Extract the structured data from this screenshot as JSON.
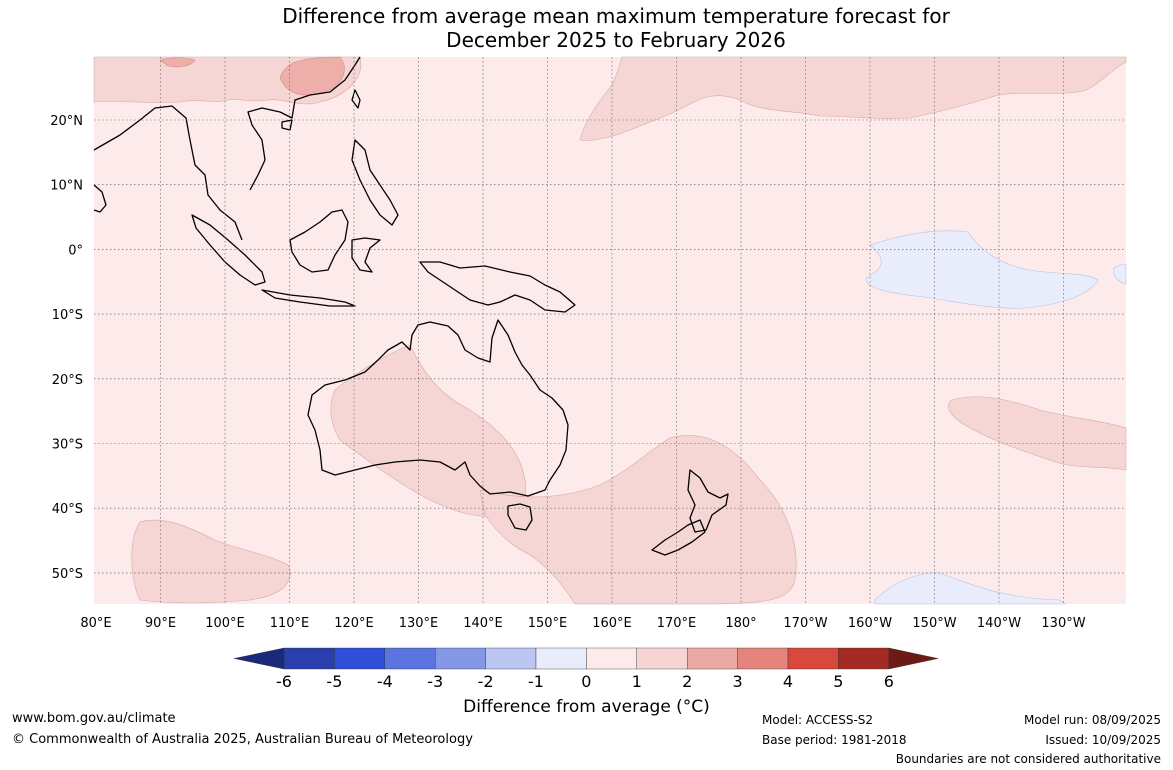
{
  "title_line1": "Difference from average mean maximum temperature forecast for",
  "title_line2": "December 2025 to February 2026",
  "lat_labels": [
    "20°N",
    "10°N",
    "0°",
    "10°S",
    "20°S",
    "30°S",
    "40°S",
    "50°S"
  ],
  "lon_labels": [
    "80°E",
    "90°E",
    "100°E",
    "110°E",
    "120°E",
    "130°E",
    "140°E",
    "150°E",
    "160°E",
    "170°E",
    "180°",
    "170°W",
    "160°W",
    "150°W",
    "140°W",
    "130°W"
  ],
  "colorbar": {
    "ticks": [
      "-6",
      "-5",
      "-4",
      "-3",
      "-2",
      "-1",
      "0",
      "1",
      "2",
      "3",
      "4",
      "5",
      "6"
    ],
    "colors": [
      "#1a2a7a",
      "#2a3fae",
      "#2f4fd8",
      "#5a74e0",
      "#8598e8",
      "#bcc6f2",
      "#e8ecfb",
      "#fcebea",
      "#f5d4d3",
      "#eba9a5",
      "#e4847c",
      "#d8483c",
      "#a62a24",
      "#6e1a14"
    ],
    "label": "Difference from average (°C)"
  },
  "map_colors": {
    "base": "#fcebea",
    "warm1": "#f5d6d4",
    "warm2": "#eeaeaa",
    "cool1": "#e8ecfb"
  },
  "footer": {
    "site": "www.bom.gov.au/climate",
    "copyright": "© Commonwealth of Australia 2025, Australian Bureau of Meteorology",
    "model": "Model: ACCESS-S2",
    "base_period": "Base period: 1981-2018",
    "model_run": "Model run: 08/09/2025",
    "issued": "Issued: 10/09/2025",
    "disclaimer": "Boundaries are not considered authoritative"
  }
}
